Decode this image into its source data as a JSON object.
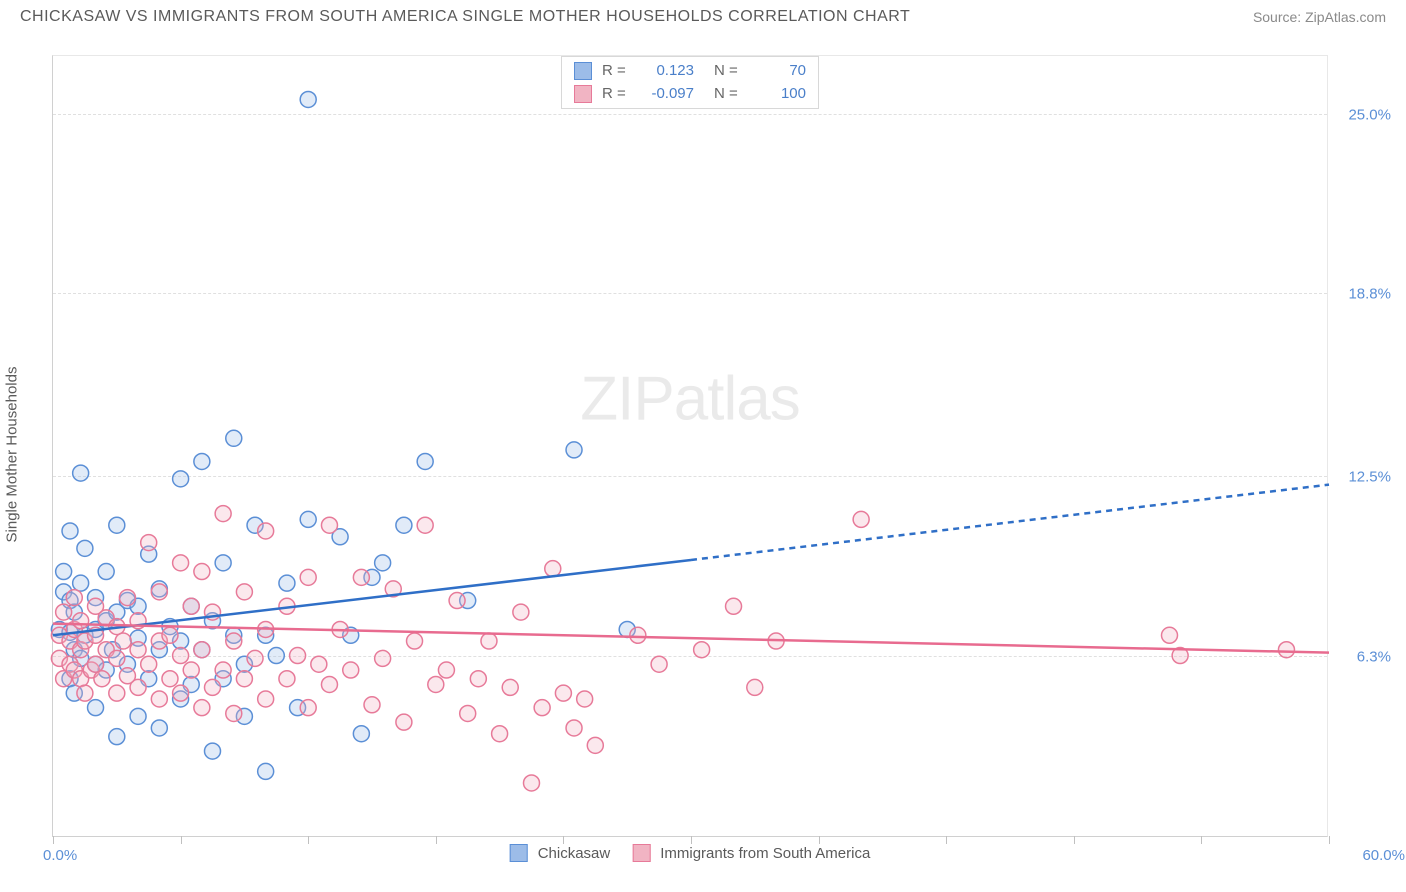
{
  "title": "CHICKASAW VS IMMIGRANTS FROM SOUTH AMERICA SINGLE MOTHER HOUSEHOLDS CORRELATION CHART",
  "source": "Source: ZipAtlas.com",
  "y_axis_label": "Single Mother Households",
  "watermark": "ZIPatlas",
  "chart": {
    "type": "scatter",
    "background_color": "#ffffff",
    "grid_color": "#e0e0e0",
    "border_color": "#d0d0d0",
    "x_min": 0.0,
    "x_max": 60.0,
    "x_unit": "%",
    "y_min": 0.0,
    "y_max": 27.0,
    "x_min_label": "0.0%",
    "x_max_label": "60.0%",
    "y_ticks": [
      {
        "value": 6.3,
        "label": "6.3%"
      },
      {
        "value": 12.5,
        "label": "12.5%"
      },
      {
        "value": 18.8,
        "label": "18.8%"
      },
      {
        "value": 25.0,
        "label": "25.0%"
      }
    ],
    "x_tick_positions_pct": [
      0,
      10,
      20,
      30,
      40,
      50,
      60,
      70,
      80,
      90,
      100
    ],
    "label_color": "#5b8fd6",
    "axis_text_color": "#5a5a5a",
    "marker_radius": 8,
    "marker_stroke_width": 1.5,
    "marker_fill_opacity": 0.3,
    "trendline_width": 2.5,
    "dash_pattern": "6,5"
  },
  "legend_top": {
    "r_label": "R =",
    "n_label": "N =",
    "rows": [
      {
        "r": "0.123",
        "n": "70"
      },
      {
        "r": "-0.097",
        "n": "100"
      }
    ]
  },
  "series": [
    {
      "id": "chickasaw",
      "label": "Chickasaw",
      "fill_color": "#9cbce8",
      "stroke_color": "#5b8fd6",
      "trend_color": "#2f6fc7",
      "trend": {
        "x1": 0,
        "y1": 7.0,
        "x_solid_end": 30,
        "y_solid_end": 9.6,
        "x2": 60,
        "y2": 12.2
      },
      "points": [
        [
          0.3,
          7.2
        ],
        [
          0.5,
          8.5
        ],
        [
          0.5,
          9.2
        ],
        [
          0.8,
          5.5
        ],
        [
          0.8,
          7.1
        ],
        [
          0.8,
          8.2
        ],
        [
          0.8,
          10.6
        ],
        [
          1.0,
          5.0
        ],
        [
          1.0,
          6.5
        ],
        [
          1.0,
          7.8
        ],
        [
          1.3,
          6.2
        ],
        [
          1.3,
          8.8
        ],
        [
          1.3,
          12.6
        ],
        [
          1.5,
          7.0
        ],
        [
          1.5,
          10.0
        ],
        [
          2.0,
          4.5
        ],
        [
          2.0,
          6.0
        ],
        [
          2.0,
          7.2
        ],
        [
          2.0,
          8.3
        ],
        [
          2.5,
          5.8
        ],
        [
          2.5,
          7.5
        ],
        [
          2.5,
          9.2
        ],
        [
          2.8,
          6.5
        ],
        [
          3.0,
          3.5
        ],
        [
          3.0,
          7.8
        ],
        [
          3.0,
          10.8
        ],
        [
          3.5,
          6.0
        ],
        [
          3.5,
          8.2
        ],
        [
          4.0,
          4.2
        ],
        [
          4.0,
          6.9
        ],
        [
          4.0,
          8.0
        ],
        [
          4.5,
          5.5
        ],
        [
          4.5,
          9.8
        ],
        [
          5.0,
          3.8
        ],
        [
          5.0,
          6.5
        ],
        [
          5.0,
          8.6
        ],
        [
          5.5,
          7.3
        ],
        [
          6.0,
          4.8
        ],
        [
          6.0,
          6.8
        ],
        [
          6.0,
          12.4
        ],
        [
          6.5,
          5.3
        ],
        [
          6.5,
          8.0
        ],
        [
          7.0,
          6.5
        ],
        [
          7.0,
          13.0
        ],
        [
          7.5,
          3.0
        ],
        [
          7.5,
          7.5
        ],
        [
          8.0,
          5.5
        ],
        [
          8.0,
          9.5
        ],
        [
          8.5,
          7.0
        ],
        [
          8.5,
          13.8
        ],
        [
          9.0,
          4.2
        ],
        [
          9.0,
          6.0
        ],
        [
          9.5,
          10.8
        ],
        [
          10.0,
          7.0
        ],
        [
          10.0,
          2.3
        ],
        [
          10.5,
          6.3
        ],
        [
          11.0,
          8.8
        ],
        [
          11.5,
          4.5
        ],
        [
          12.0,
          11.0
        ],
        [
          12.0,
          25.5
        ],
        [
          13.5,
          10.4
        ],
        [
          14.0,
          7.0
        ],
        [
          14.5,
          3.6
        ],
        [
          15.0,
          9.0
        ],
        [
          15.5,
          9.5
        ],
        [
          16.5,
          10.8
        ],
        [
          17.5,
          13.0
        ],
        [
          19.5,
          8.2
        ],
        [
          24.5,
          13.4
        ],
        [
          27.0,
          7.2
        ]
      ]
    },
    {
      "id": "immigrants",
      "label": "Immigrants from South America",
      "fill_color": "#f1b4c3",
      "stroke_color": "#e77a99",
      "trend_color": "#e86b8f",
      "trend": {
        "x1": 0,
        "y1": 7.4,
        "x_solid_end": 60,
        "y_solid_end": 6.4,
        "x2": 60,
        "y2": 6.4
      },
      "points": [
        [
          0.3,
          6.2
        ],
        [
          0.3,
          7.0
        ],
        [
          0.5,
          5.5
        ],
        [
          0.5,
          7.8
        ],
        [
          0.8,
          6.0
        ],
        [
          0.8,
          6.8
        ],
        [
          1.0,
          5.8
        ],
        [
          1.0,
          7.2
        ],
        [
          1.0,
          8.3
        ],
        [
          1.3,
          5.5
        ],
        [
          1.3,
          6.5
        ],
        [
          1.3,
          7.5
        ],
        [
          1.5,
          5.0
        ],
        [
          1.5,
          6.8
        ],
        [
          1.8,
          5.8
        ],
        [
          2.0,
          6.0
        ],
        [
          2.0,
          7.0
        ],
        [
          2.0,
          8.0
        ],
        [
          2.3,
          5.5
        ],
        [
          2.5,
          6.5
        ],
        [
          2.5,
          7.6
        ],
        [
          3.0,
          5.0
        ],
        [
          3.0,
          6.2
        ],
        [
          3.0,
          7.3
        ],
        [
          3.3,
          6.8
        ],
        [
          3.5,
          5.6
        ],
        [
          3.5,
          8.3
        ],
        [
          4.0,
          5.2
        ],
        [
          4.0,
          6.5
        ],
        [
          4.0,
          7.5
        ],
        [
          4.5,
          6.0
        ],
        [
          4.5,
          10.2
        ],
        [
          5.0,
          4.8
        ],
        [
          5.0,
          6.8
        ],
        [
          5.0,
          8.5
        ],
        [
          5.5,
          5.5
        ],
        [
          5.5,
          7.0
        ],
        [
          6.0,
          5.0
        ],
        [
          6.0,
          6.3
        ],
        [
          6.0,
          9.5
        ],
        [
          6.5,
          5.8
        ],
        [
          6.5,
          8.0
        ],
        [
          7.0,
          4.5
        ],
        [
          7.0,
          6.5
        ],
        [
          7.0,
          9.2
        ],
        [
          7.5,
          5.2
        ],
        [
          7.5,
          7.8
        ],
        [
          8.0,
          5.8
        ],
        [
          8.0,
          11.2
        ],
        [
          8.5,
          4.3
        ],
        [
          8.5,
          6.8
        ],
        [
          9.0,
          5.5
        ],
        [
          9.0,
          8.5
        ],
        [
          9.5,
          6.2
        ],
        [
          10.0,
          4.8
        ],
        [
          10.0,
          7.2
        ],
        [
          10.0,
          10.6
        ],
        [
          11.0,
          5.5
        ],
        [
          11.0,
          8.0
        ],
        [
          11.5,
          6.3
        ],
        [
          12.0,
          4.5
        ],
        [
          12.0,
          9.0
        ],
        [
          12.5,
          6.0
        ],
        [
          13.0,
          5.3
        ],
        [
          13.0,
          10.8
        ],
        [
          13.5,
          7.2
        ],
        [
          14.0,
          5.8
        ],
        [
          14.5,
          9.0
        ],
        [
          15.0,
          4.6
        ],
        [
          15.5,
          6.2
        ],
        [
          16.0,
          8.6
        ],
        [
          16.5,
          4.0
        ],
        [
          17.0,
          6.8
        ],
        [
          17.5,
          10.8
        ],
        [
          18.0,
          5.3
        ],
        [
          18.5,
          5.8
        ],
        [
          19.0,
          8.2
        ],
        [
          19.5,
          4.3
        ],
        [
          20.0,
          5.5
        ],
        [
          20.5,
          6.8
        ],
        [
          21.0,
          3.6
        ],
        [
          21.5,
          5.2
        ],
        [
          22.0,
          7.8
        ],
        [
          22.5,
          1.9
        ],
        [
          23.0,
          4.5
        ],
        [
          23.5,
          9.3
        ],
        [
          24.0,
          5.0
        ],
        [
          24.5,
          3.8
        ],
        [
          25.0,
          4.8
        ],
        [
          25.5,
          3.2
        ],
        [
          27.5,
          7.0
        ],
        [
          28.5,
          6.0
        ],
        [
          30.5,
          6.5
        ],
        [
          32.0,
          8.0
        ],
        [
          33.0,
          5.2
        ],
        [
          34.0,
          6.8
        ],
        [
          38.0,
          11.0
        ],
        [
          52.5,
          7.0
        ],
        [
          53.0,
          6.3
        ],
        [
          58.0,
          6.5
        ]
      ]
    }
  ]
}
